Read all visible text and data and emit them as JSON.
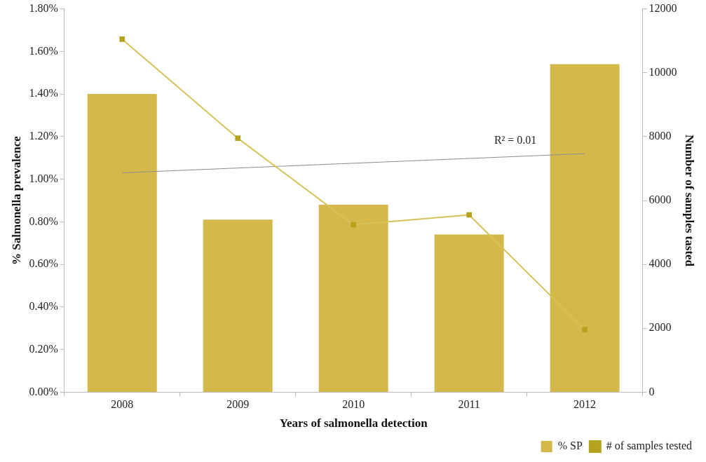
{
  "chart_data": {
    "type": "bar",
    "xlabel": "Years of salmonella detection",
    "ylabel": "% Salmonella prevalence",
    "y2label": "Number of samples tasted",
    "categories": [
      "2008",
      "2009",
      "2010",
      "2011",
      "2012"
    ],
    "series": [
      {
        "name": "% SP",
        "color": "#d4b94a",
        "values": [
          1.4,
          0.81,
          0.88,
          0.74,
          1.54
        ]
      },
      {
        "name": "# of samples tested",
        "type": "line",
        "axis": "y2",
        "color": "#d6c25a",
        "marker": "square",
        "values": [
          11050,
          7950,
          5240,
          5550,
          1960
        ]
      },
      {
        "type": "line",
        "color": "#8c8c8c",
        "marker": "none",
        "values": [
          1.03,
          null,
          null,
          null,
          1.12
        ]
      }
    ],
    "annotations": [
      "R² = 0.01"
    ],
    "ylim": [
      0,
      1.8
    ],
    "yticks": [
      {
        "value": 0,
        "label": "0.00%"
      },
      {
        "value": 0.2,
        "label": "0.20%"
      },
      {
        "value": 0.4,
        "label": "0.40%"
      },
      {
        "value": 0.6,
        "label": "0.60%"
      },
      {
        "value": 0.8,
        "label": "0.80%"
      },
      {
        "value": 1.0,
        "label": "1.00%"
      },
      {
        "value": 1.2,
        "label": "1.20%"
      },
      {
        "value": 1.4,
        "label": "1.40%"
      },
      {
        "value": 1.6,
        "label": "1.60%"
      },
      {
        "value": 1.8,
        "label": "1.80%"
      }
    ],
    "y2lim": [
      0,
      12000
    ],
    "y2ticks": [
      0,
      2000,
      4000,
      6000,
      8000,
      10000,
      12000
    ],
    "grid": false,
    "legend": "bottom right"
  }
}
